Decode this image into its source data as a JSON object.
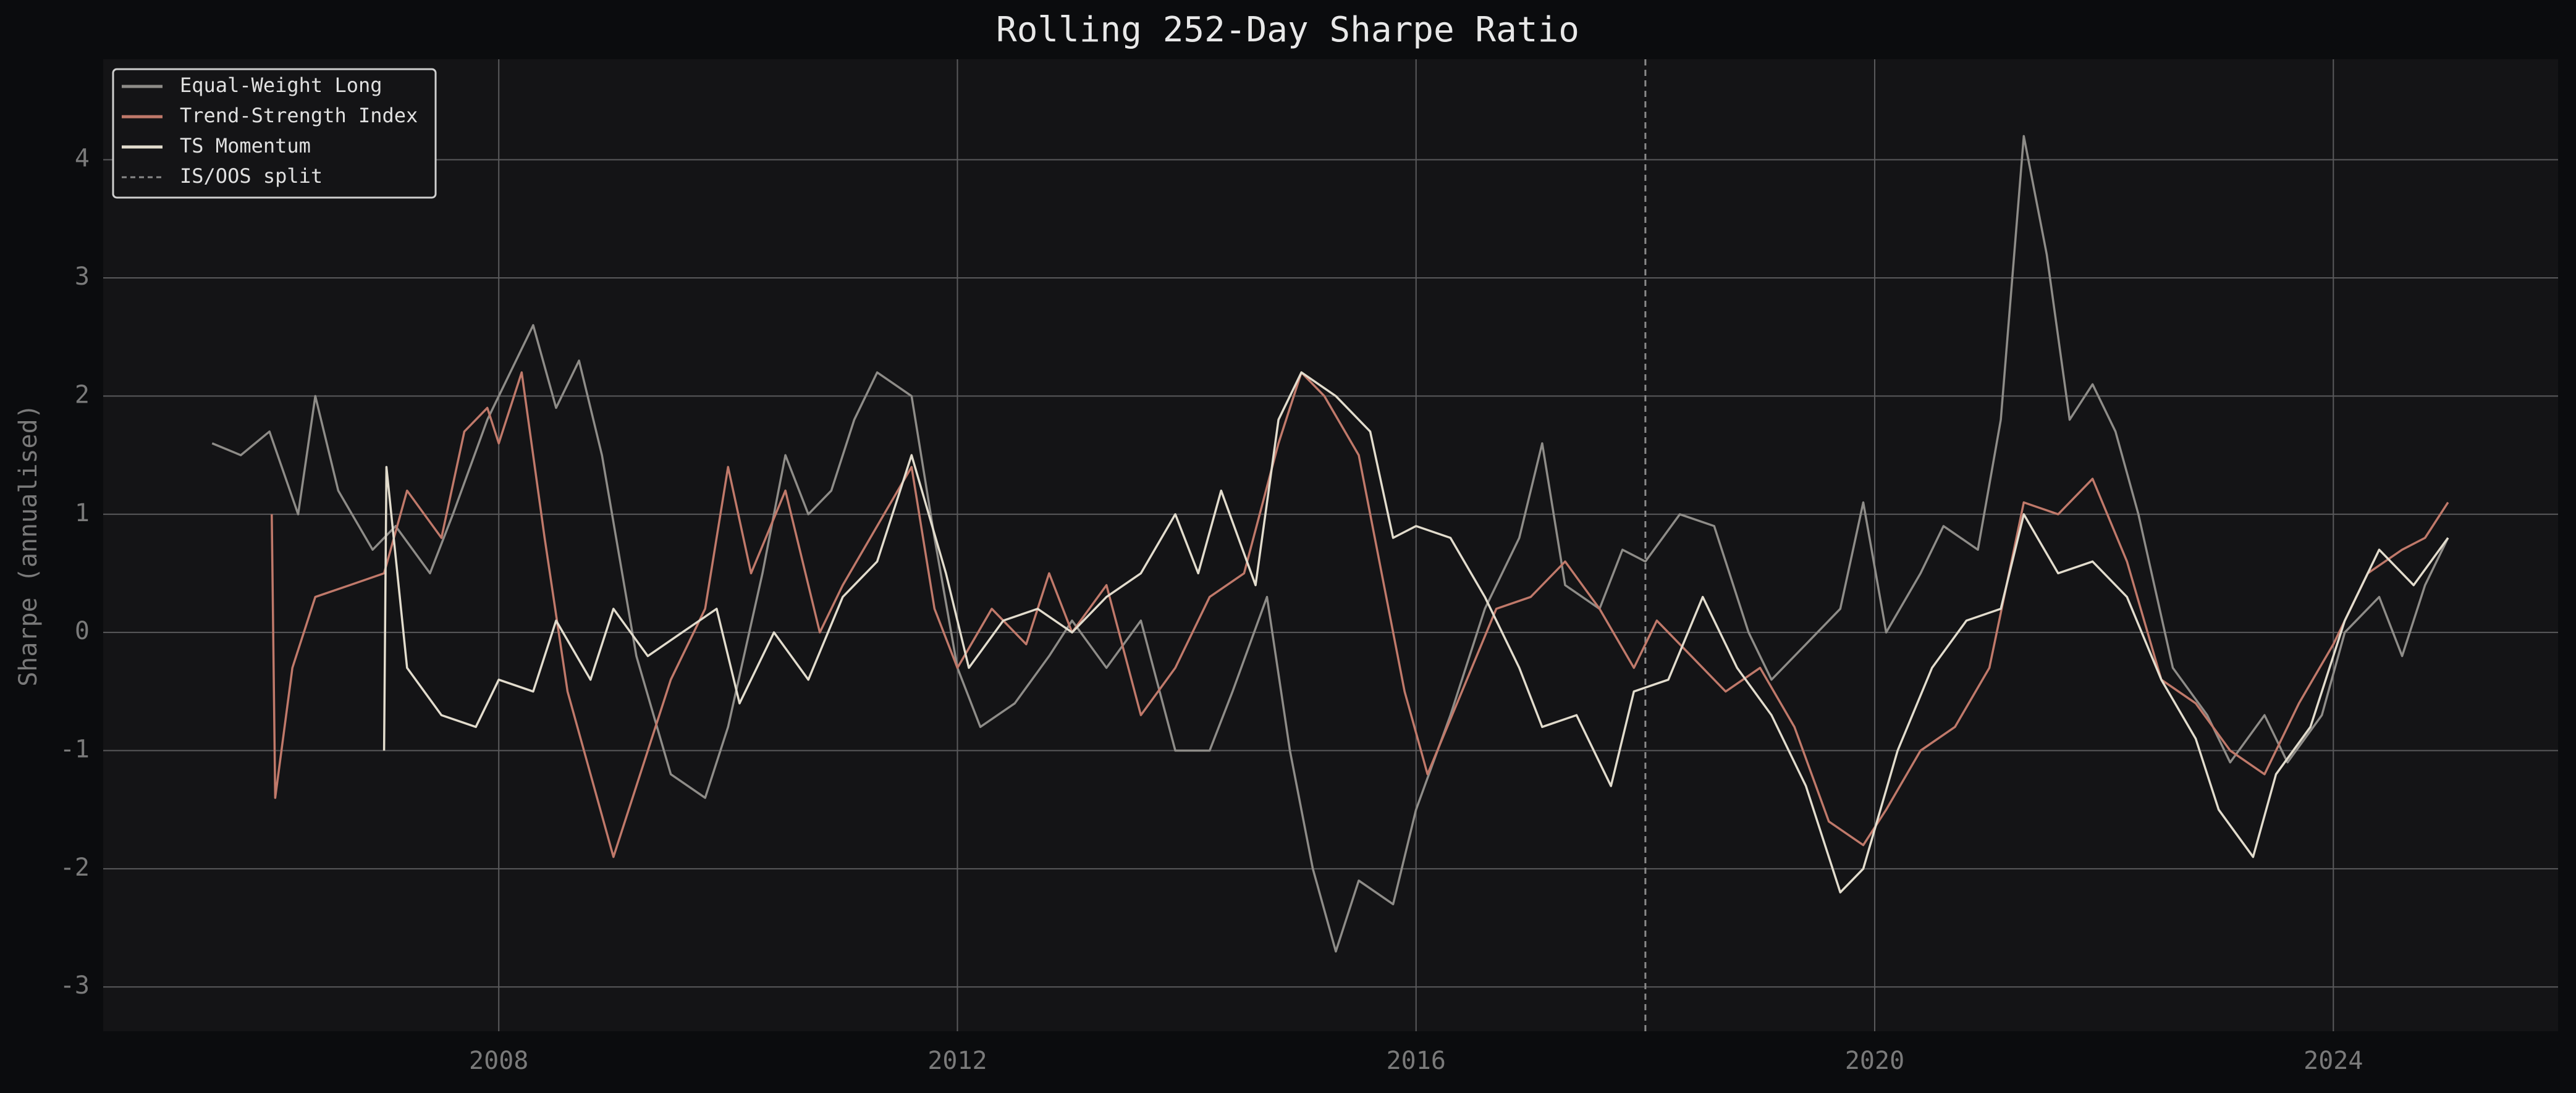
{
  "chart_data": {
    "type": "line",
    "title": "Rolling 252-Day Sharpe Ratio",
    "ylabel": "Sharpe (annualised)",
    "xlim": [
      2004.55,
      2025.96
    ],
    "xticks": [
      2008,
      2012,
      2016,
      2020,
      2024
    ],
    "ylim": [
      -3.375,
      4.85
    ],
    "yticks": [
      -3,
      -2,
      -1,
      0,
      1,
      2,
      3,
      4
    ],
    "grid": true,
    "legend": "upper left",
    "split": {
      "x": 2018,
      "label": "IS/OOS split",
      "color": "#8a8a8a"
    },
    "series": [
      {
        "name": "Equal-Weight Long",
        "color": "#8e8c88",
        "x": [
          2005.5,
          2005.75,
          2006,
          2006.25,
          2006.4,
          2006.6,
          2006.9,
          2007.1,
          2007.4,
          2007.6,
          2007.9,
          2008.1,
          2008.3,
          2008.5,
          2008.7,
          2008.9,
          2009.2,
          2009.5,
          2009.8,
          2010,
          2010.3,
          2010.5,
          2010.7,
          2010.9,
          2011.1,
          2011.3,
          2011.6,
          2011.8,
          2012,
          2012.2,
          2012.5,
          2012.8,
          2013,
          2013.3,
          2013.6,
          2013.9,
          2014.2,
          2014.4,
          2014.7,
          2014.9,
          2015.1,
          2015.3,
          2015.5,
          2015.8,
          2016,
          2016.3,
          2016.6,
          2016.9,
          2017.1,
          2017.3,
          2017.6,
          2017.8,
          2018,
          2018.3,
          2018.6,
          2018.9,
          2019.1,
          2019.4,
          2019.7,
          2019.9,
          2020.1,
          2020.4,
          2020.6,
          2020.9,
          2021.1,
          2021.3,
          2021.5,
          2021.7,
          2021.9,
          2022.1,
          2022.3,
          2022.6,
          2022.9,
          2023.1,
          2023.4,
          2023.6,
          2023.9,
          2024.1,
          2024.4,
          2024.6,
          2024.8,
          2025
        ],
        "values": [
          1.6,
          1.5,
          1.7,
          1.0,
          2.0,
          1.2,
          0.7,
          0.9,
          0.5,
          1.0,
          1.8,
          2.2,
          2.6,
          1.9,
          2.3,
          1.5,
          -0.2,
          -1.2,
          -1.4,
          -0.8,
          0.5,
          1.5,
          1.0,
          1.2,
          1.8,
          2.2,
          2.0,
          0.8,
          -0.3,
          -0.8,
          -0.6,
          -0.2,
          0.1,
          -0.3,
          0.1,
          -1.0,
          -1.0,
          -0.5,
          0.3,
          -1.0,
          -2.0,
          -2.7,
          -2.1,
          -2.3,
          -1.5,
          -0.7,
          0.2,
          0.8,
          1.6,
          0.4,
          0.2,
          0.7,
          0.6,
          1.0,
          0.9,
          0.0,
          -0.4,
          -0.1,
          0.2,
          1.1,
          0.0,
          0.5,
          0.9,
          0.7,
          1.8,
          4.2,
          3.2,
          1.8,
          2.1,
          1.7,
          1.0,
          -0.3,
          -0.7,
          -1.1,
          -0.7,
          -1.1,
          -0.7,
          0.0,
          0.3,
          -0.2,
          0.4,
          0.8
        ]
      },
      {
        "name": "Trend-Strength Index",
        "color": "#c0796a",
        "x": [
          2006.02,
          2006.05,
          2006.2,
          2006.4,
          2006.7,
          2007,
          2007.2,
          2007.5,
          2007.7,
          2007.9,
          2008,
          2008.2,
          2008.4,
          2008.6,
          2008.8,
          2009,
          2009.2,
          2009.5,
          2009.8,
          2010,
          2010.2,
          2010.5,
          2010.8,
          2011,
          2011.3,
          2011.6,
          2011.8,
          2012,
          2012.3,
          2012.6,
          2012.8,
          2013,
          2013.3,
          2013.6,
          2013.9,
          2014.2,
          2014.5,
          2014.8,
          2015,
          2015.2,
          2015.5,
          2015.7,
          2015.9,
          2016.1,
          2016.4,
          2016.7,
          2017,
          2017.3,
          2017.6,
          2017.9,
          2018.1,
          2018.4,
          2018.7,
          2019,
          2019.3,
          2019.6,
          2019.9,
          2020.1,
          2020.4,
          2020.7,
          2021,
          2021.3,
          2021.6,
          2021.9,
          2022.2,
          2022.5,
          2022.8,
          2023.1,
          2023.4,
          2023.7,
          2024,
          2024.3,
          2024.6,
          2024.8,
          2025
        ],
        "values": [
          1.0,
          -1.4,
          -0.3,
          0.3,
          0.4,
          0.5,
          1.2,
          0.8,
          1.7,
          1.9,
          1.6,
          2.2,
          0.8,
          -0.5,
          -1.2,
          -1.9,
          -1.3,
          -0.4,
          0.2,
          1.4,
          0.5,
          1.2,
          0.0,
          0.4,
          0.9,
          1.4,
          0.2,
          -0.3,
          0.2,
          -0.1,
          0.5,
          0.0,
          0.4,
          -0.7,
          -0.3,
          0.3,
          0.5,
          1.6,
          2.2,
          2.0,
          1.5,
          0.5,
          -0.5,
          -1.2,
          -0.5,
          0.2,
          0.3,
          0.6,
          0.2,
          -0.3,
          0.1,
          -0.2,
          -0.5,
          -0.3,
          -0.8,
          -1.6,
          -1.8,
          -1.5,
          -1.0,
          -0.8,
          -0.3,
          1.1,
          1.0,
          1.3,
          0.6,
          -0.4,
          -0.6,
          -1.0,
          -1.2,
          -0.6,
          -0.1,
          0.5,
          0.7,
          0.8,
          1.1
        ]
      },
      {
        "name": "TS Momentum",
        "color": "#e2dccd",
        "x": [
          2007,
          2007.02,
          2007.2,
          2007.5,
          2007.8,
          2008,
          2008.3,
          2008.5,
          2008.8,
          2009,
          2009.3,
          2009.6,
          2009.9,
          2010.1,
          2010.4,
          2010.7,
          2011,
          2011.3,
          2011.6,
          2011.9,
          2012.1,
          2012.4,
          2012.7,
          2013,
          2013.3,
          2013.6,
          2013.9,
          2014.1,
          2014.3,
          2014.6,
          2014.8,
          2015,
          2015.3,
          2015.6,
          2015.8,
          2016,
          2016.3,
          2016.6,
          2016.9,
          2017.1,
          2017.4,
          2017.7,
          2017.9,
          2018.2,
          2018.5,
          2018.8,
          2019.1,
          2019.4,
          2019.7,
          2019.9,
          2020.2,
          2020.5,
          2020.8,
          2021.1,
          2021.3,
          2021.6,
          2021.9,
          2022.2,
          2022.5,
          2022.8,
          2023,
          2023.3,
          2023.5,
          2023.8,
          2024.1,
          2024.4,
          2024.7,
          2025
        ],
        "values": [
          -1.0,
          1.4,
          -0.3,
          -0.7,
          -0.8,
          -0.4,
          -0.5,
          0.1,
          -0.4,
          0.2,
          -0.2,
          0.0,
          0.2,
          -0.6,
          0.0,
          -0.4,
          0.3,
          0.6,
          1.5,
          0.5,
          -0.3,
          0.1,
          0.2,
          0.0,
          0.3,
          0.5,
          1.0,
          0.5,
          1.2,
          0.4,
          1.8,
          2.2,
          2.0,
          1.7,
          0.8,
          0.9,
          0.8,
          0.3,
          -0.3,
          -0.8,
          -0.7,
          -1.3,
          -0.5,
          -0.4,
          0.3,
          -0.3,
          -0.7,
          -1.3,
          -2.2,
          -2.0,
          -1.0,
          -0.3,
          0.1,
          0.2,
          1.0,
          0.5,
          0.6,
          0.3,
          -0.4,
          -0.9,
          -1.5,
          -1.9,
          -1.2,
          -0.8,
          0.1,
          0.7,
          0.4,
          0.8
        ]
      }
    ]
  }
}
